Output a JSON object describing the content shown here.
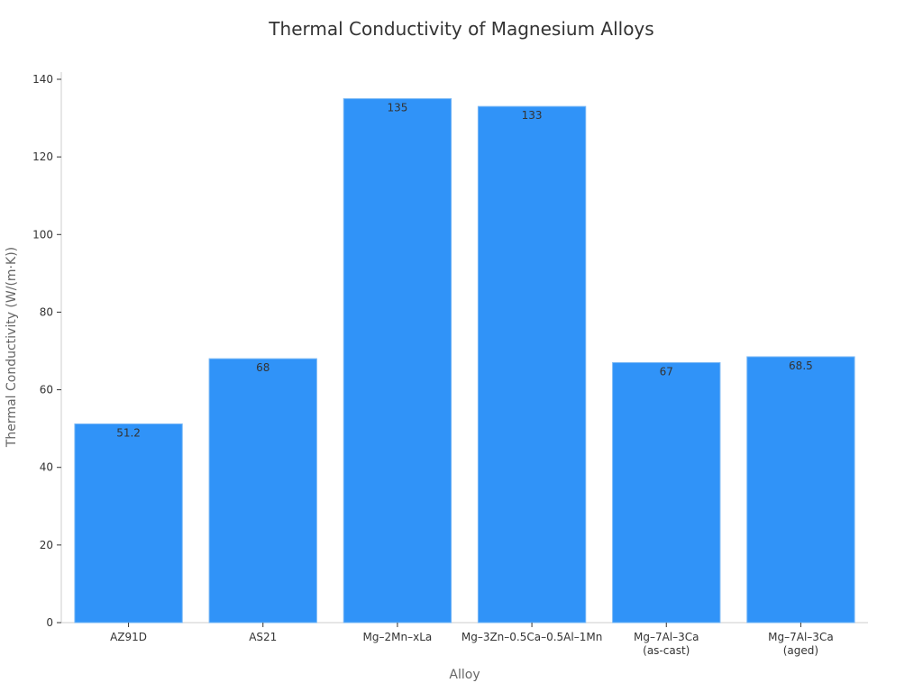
{
  "chart_data": {
    "type": "bar",
    "title": "Thermal Conductivity of Magnesium Alloys",
    "xlabel": "Alloy",
    "ylabel": "Thermal Conductivity (W/(m·K))",
    "categories": [
      "AZ91D",
      "AS21",
      "Mg–2Mn–xLa",
      "Mg–3Zn–0.5Ca–0.5Al–1Mn",
      "Mg–7Al–3Ca (as-cast)",
      "Mg–7Al–3Ca (aged)"
    ],
    "category_lines": [
      [
        "AZ91D"
      ],
      [
        "AS21"
      ],
      [
        "Mg–2Mn–xLa"
      ],
      [
        "Mg–3Zn–0.5Ca–0.5Al–1Mn"
      ],
      [
        "Mg–7Al–3Ca",
        "(as-cast)"
      ],
      [
        "Mg–7Al–3Ca",
        "(aged)"
      ]
    ],
    "values": [
      51.2,
      68,
      135,
      133,
      67,
      68.5
    ],
    "value_labels": [
      "51.2",
      "68",
      "135",
      "133",
      "67",
      "68.5"
    ],
    "ylim": [
      0,
      140
    ],
    "yticks": [
      0,
      20,
      40,
      60,
      80,
      100,
      120,
      140
    ],
    "grid": false,
    "legend": null,
    "bar_color": "#3093f8"
  }
}
